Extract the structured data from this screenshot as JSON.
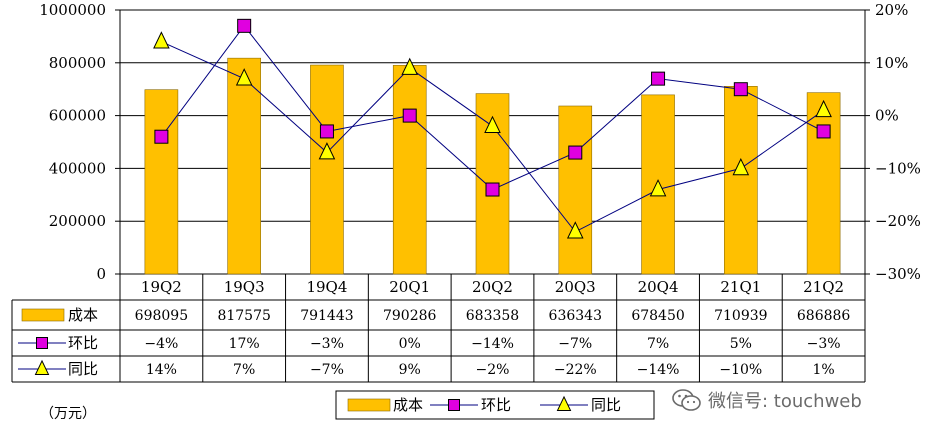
{
  "chart_data": {
    "type": "bar",
    "categories": [
      "19Q2",
      "19Q3",
      "19Q4",
      "20Q1",
      "20Q2",
      "20Q3",
      "20Q4",
      "21Q1",
      "21Q2"
    ],
    "series": [
      {
        "name": "成本",
        "type": "bar",
        "axis": "left",
        "color": "#FFC000",
        "values": [
          698095,
          817575,
          791443,
          790286,
          683358,
          636343,
          678450,
          710939,
          686886
        ]
      },
      {
        "name": "环比",
        "type": "line",
        "axis": "right",
        "color": "#E000E0",
        "marker": "square",
        "values": [
          -4,
          17,
          -3,
          0,
          -14,
          -7,
          7,
          5,
          -3
        ]
      },
      {
        "name": "同比",
        "type": "line",
        "axis": "right",
        "color": "#FFFF00",
        "marker": "triangle",
        "values": [
          14,
          7,
          -7,
          9,
          -2,
          -22,
          -14,
          -10,
          1
        ]
      }
    ],
    "left_axis": {
      "ylim": [
        0,
        1000000
      ],
      "ticks": [
        0,
        200000,
        400000,
        600000,
        800000,
        1000000
      ],
      "tick_labels": [
        "0",
        "200000",
        "400000",
        "600000",
        "800000",
        "1000000"
      ]
    },
    "right_axis": {
      "ylim": [
        -30,
        20
      ],
      "ticks": [
        20,
        10,
        0,
        -10,
        -20,
        -30
      ],
      "tick_labels": [
        "20%",
        "10%",
        "0%",
        "−10%",
        "−20%",
        "−30%"
      ]
    },
    "table": {
      "rows": [
        {
          "label": "成本",
          "cells": [
            "698095",
            "817575",
            "791443",
            "790286",
            "683358",
            "636343",
            "678450",
            "710939",
            "686886"
          ]
        },
        {
          "label": "环比",
          "cells": [
            "−4%",
            "17%",
            "−3%",
            "0%",
            "−14%",
            "−7%",
            "7%",
            "5%",
            "−3%"
          ]
        },
        {
          "label": "同比",
          "cells": [
            "14%",
            "7%",
            "−7%",
            "9%",
            "−2%",
            "−22%",
            "−14%",
            "−10%",
            "1%"
          ]
        }
      ]
    },
    "legend": {
      "position": "bottom",
      "items": [
        "成本",
        "环比",
        "同比"
      ]
    },
    "unit_label": "（万元）"
  },
  "watermark": "微信号: touchweb",
  "colors": {
    "bar": "#FFC000",
    "bar_edge": "#8c6a00",
    "hb_marker": "#E000E0",
    "tb_marker": "#FFFF00",
    "line": "#000080"
  }
}
